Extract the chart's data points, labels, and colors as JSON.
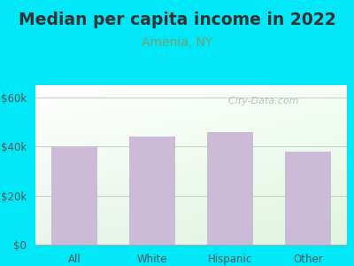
{
  "title": "Median per capita income in 2022",
  "subtitle": "Amenia, NY",
  "categories": [
    "All",
    "White",
    "Hispanic",
    "Other"
  ],
  "values": [
    40000,
    44000,
    46000,
    38000
  ],
  "bar_color": "#c9b8d8",
  "background_outer": "#00e8f8",
  "yticks": [
    0,
    20000,
    40000,
    60000
  ],
  "ytick_labels": [
    "$0",
    "$20k",
    "$40k",
    "$60k"
  ],
  "ylim": [
    0,
    65000
  ],
  "title_fontsize": 13.5,
  "subtitle_fontsize": 10,
  "tick_fontsize": 8.5,
  "title_color": "#333333",
  "subtitle_color": "#7a9e6e",
  "tick_color": "#555555",
  "watermark": "  City-Data.com",
  "grid_color": "#cccccc"
}
